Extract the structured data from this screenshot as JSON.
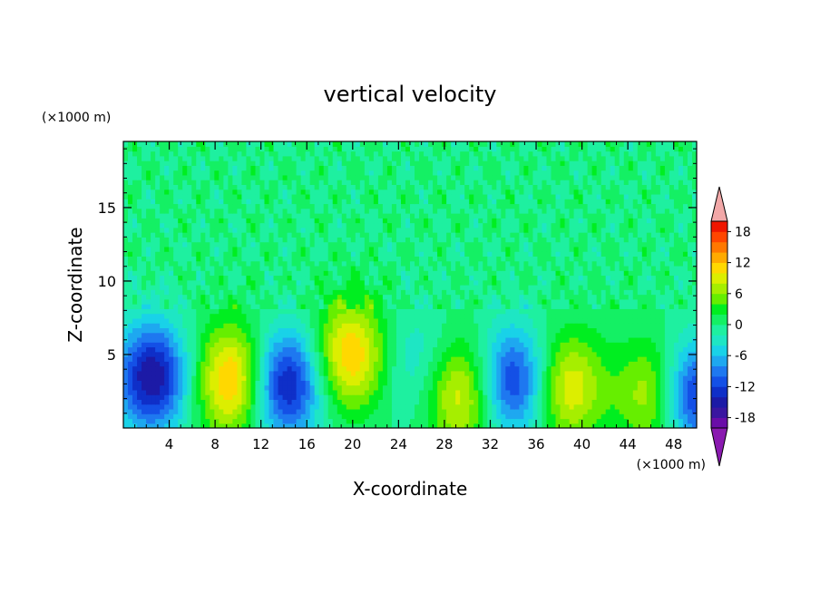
{
  "chart_data": {
    "type": "heatmap",
    "title": "vertical velocity",
    "xlabel": "X-coordinate",
    "ylabel": "Z-coordinate",
    "x_unit": "(×1000 m)",
    "y_unit": "(×1000 m)",
    "xlim": [
      0,
      50
    ],
    "ylim": [
      0,
      19.5
    ],
    "x_ticks": [
      "4",
      "8",
      "12",
      "16",
      "20",
      "24",
      "28",
      "32",
      "36",
      "40",
      "44",
      "48"
    ],
    "x_tick_values": [
      4,
      8,
      12,
      16,
      20,
      24,
      28,
      32,
      36,
      40,
      44,
      48
    ],
    "y_ticks": [
      "5",
      "10",
      "15"
    ],
    "y_tick_values": [
      5,
      10,
      15
    ],
    "colorbar": {
      "labels": [
        "18",
        "12",
        "6",
        "0",
        "-6",
        "-12",
        "-18"
      ],
      "label_values": [
        18,
        12,
        6,
        0,
        -6,
        -12,
        -18
      ],
      "levels": [
        -20,
        -18,
        -16,
        -14,
        -12,
        -10,
        -8,
        -6,
        -4,
        -2,
        0,
        2,
        4,
        6,
        8,
        10,
        12,
        14,
        16,
        18,
        20
      ],
      "colors": [
        "#6a0da8",
        "#3a16a0",
        "#1c1aa6",
        "#0f2fc8",
        "#1450e6",
        "#1e78f0",
        "#1ea8f0",
        "#19d2e8",
        "#1ee6c4",
        "#1ef0a0",
        "#14f064",
        "#00ee20",
        "#66ee00",
        "#a6ee00",
        "#dcee00",
        "#ffd800",
        "#ffaa00",
        "#ff7800",
        "#ff4600",
        "#ef1600"
      ],
      "over_color": "#f2a8a8",
      "under_color": "#8a1ab0"
    },
    "features": [
      {
        "x": 2.5,
        "z": 3.5,
        "w": -16
      },
      {
        "x": 9.5,
        "z": 3.3,
        "w": 13
      },
      {
        "x": 14.2,
        "z": 3.0,
        "w": -15
      },
      {
        "x": 19.8,
        "z": 5.0,
        "w": 12
      },
      {
        "x": 25.5,
        "z": 4.5,
        "w": -4
      },
      {
        "x": 29.5,
        "z": 2.3,
        "w": 10
      },
      {
        "x": 34.0,
        "z": 3.2,
        "w": -13
      },
      {
        "x": 38.8,
        "z": 2.8,
        "w": 10
      },
      {
        "x": 46.3,
        "z": 2.3,
        "w": 9
      },
      {
        "x": 49.7,
        "z": 2.3,
        "w": -14
      }
    ]
  }
}
